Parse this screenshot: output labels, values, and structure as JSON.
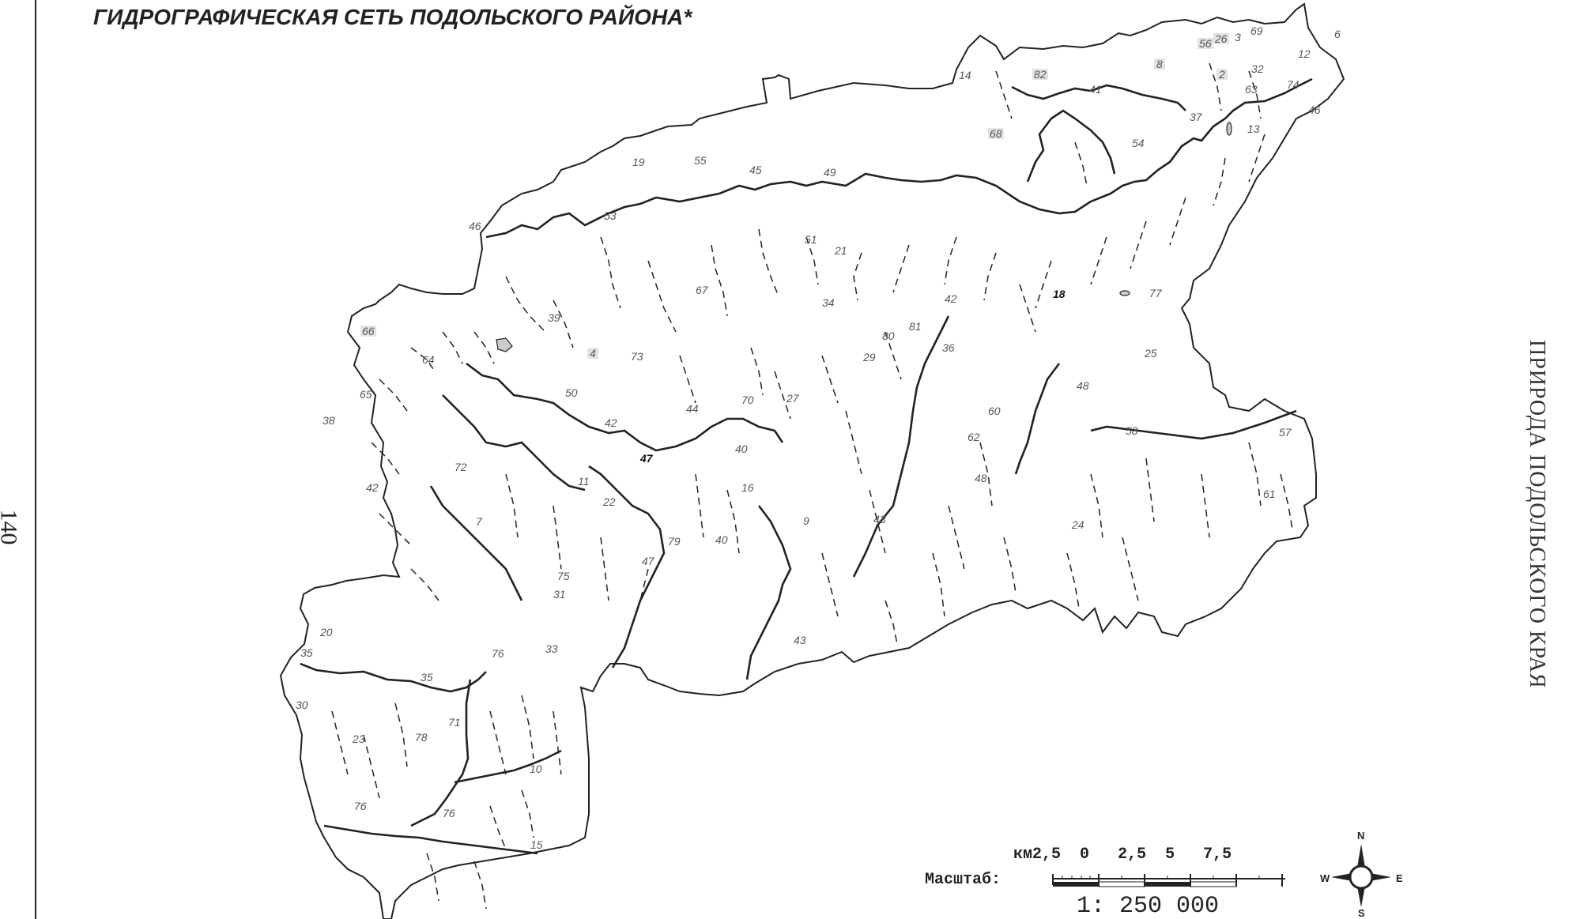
{
  "page_number": "140",
  "section_title": "ПРИРОДА ПОДОЛЬСКОГО КРАЯ",
  "map_title": "ГИДРОГРАФИЧЕСКАЯ СЕТЬ ПОДОЛЬСКОГО РАЙОНА*",
  "scale": {
    "km_label": "км",
    "ticks": [
      "2,5",
      "0",
      "2,5",
      "5",
      "7,5"
    ],
    "label": "Масштаб:",
    "ratio": "1: 250 000"
  },
  "compass": {
    "n": "N",
    "s": "S",
    "w": "W",
    "e": "E"
  },
  "labels": [
    "56",
    "26",
    "3",
    "69",
    "6",
    "12",
    "14",
    "82",
    "8",
    "2",
    "32",
    "41",
    "63",
    "74",
    "46",
    "37",
    "13",
    "68",
    "54",
    "19",
    "55",
    "45",
    "49",
    "53",
    "46",
    "51",
    "21",
    "67",
    "34",
    "42",
    "18",
    "77",
    "39",
    "66",
    "64",
    "4",
    "73",
    "80",
    "81",
    "36",
    "29",
    "25",
    "65",
    "38",
    "50",
    "42",
    "44",
    "70",
    "27",
    "48",
    "60",
    "58",
    "57",
    "62",
    "72",
    "47",
    "40",
    "11",
    "42",
    "22",
    "16",
    "48",
    "61",
    "7",
    "9",
    "43",
    "24",
    "79",
    "40",
    "47",
    "75",
    "31",
    "20",
    "33",
    "35",
    "76",
    "35",
    "30",
    "71",
    "23",
    "78",
    "10",
    "76",
    "76",
    "15",
    "43"
  ]
}
